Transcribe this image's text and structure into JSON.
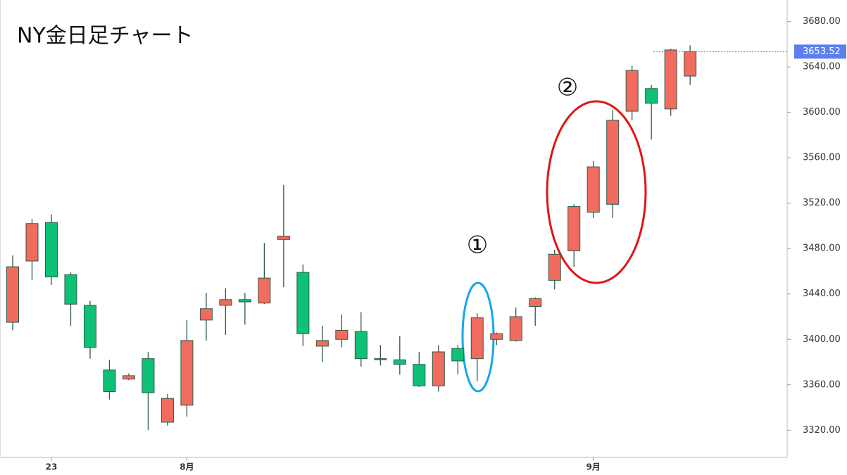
{
  "chart_data": {
    "type": "candlestick",
    "title": "NY金日足チャート",
    "categories": [
      null,
      null,
      "23",
      null,
      null,
      null,
      null,
      null,
      null,
      "8月",
      null,
      null,
      null,
      null,
      null,
      null,
      null,
      null,
      null,
      null,
      null,
      null,
      null,
      null,
      null,
      null,
      null,
      null,
      null,
      null,
      "9月",
      null,
      null,
      null,
      null,
      null
    ],
    "open": [
      3415,
      3469,
      3503,
      3457,
      3430,
      3373,
      3365,
      3383,
      3327,
      3342,
      3417,
      3430,
      3435,
      3432,
      3488,
      3459,
      3394,
      3400,
      3407,
      3383,
      3382,
      3378,
      3359,
      3392,
      3383,
      3400,
      3399,
      3429,
      3452,
      3478,
      3512,
      3519,
      3601,
      3621,
      3603,
      3632
    ],
    "high": [
      3474,
      3506,
      3510,
      3459,
      3434,
      3382,
      3370,
      3389,
      3352,
      3417,
      3441,
      3445,
      3441,
      3485,
      3536,
      3466,
      3412,
      3422,
      3424,
      3395,
      3403,
      3389,
      3395,
      3395,
      3423,
      3406,
      3428,
      3437,
      3479,
      3519,
      3557,
      3602,
      3641,
      3624,
      3656,
      3659
    ],
    "low": [
      3408,
      3452,
      3448,
      3412,
      3383,
      3347,
      3364,
      3320,
      3324,
      3332,
      3399,
      3404,
      3413,
      3431,
      3446,
      3394,
      3380,
      3393,
      3376,
      3377,
      3369,
      3358,
      3354,
      3369,
      3363,
      3395,
      3398,
      3412,
      3444,
      3464,
      3507,
      3507,
      3593,
      3576,
      3597,
      3624
    ],
    "close": [
      3464,
      3502,
      3455,
      3431,
      3393,
      3354,
      3368,
      3353,
      3348,
      3399,
      3427,
      3435,
      3433,
      3454,
      3491,
      3405,
      3399,
      3408,
      3383,
      3382,
      3378,
      3359,
      3389,
      3381,
      3419,
      3405,
      3420,
      3436,
      3475,
      3517,
      3552,
      3593,
      3637,
      3608,
      3655,
      3653.52
    ],
    "up_color": "#f26b5f",
    "down_color": "#0fc177",
    "wick_color": "#2f5a47",
    "last_price": 3653.52,
    "last_price_color": "#5b7ff0",
    "annotations": [
      "①",
      "②"
    ],
    "ylim": [
      3296,
      3699
    ],
    "yticks": [
      {
        "value": 3320,
        "label": "3320.00"
      },
      {
        "value": 3360,
        "label": "3360.00"
      },
      {
        "value": 3400,
        "label": "3400.00"
      },
      {
        "value": 3440,
        "label": "3440.00"
      },
      {
        "value": 3480,
        "label": "3480.00"
      },
      {
        "value": 3520,
        "label": "3520.00"
      },
      {
        "value": 3560,
        "label": "3560.00"
      },
      {
        "value": 3600,
        "label": "3600.00"
      },
      {
        "value": 3640,
        "label": "3640.00"
      },
      {
        "value": 3680,
        "label": "3680.00"
      }
    ]
  }
}
